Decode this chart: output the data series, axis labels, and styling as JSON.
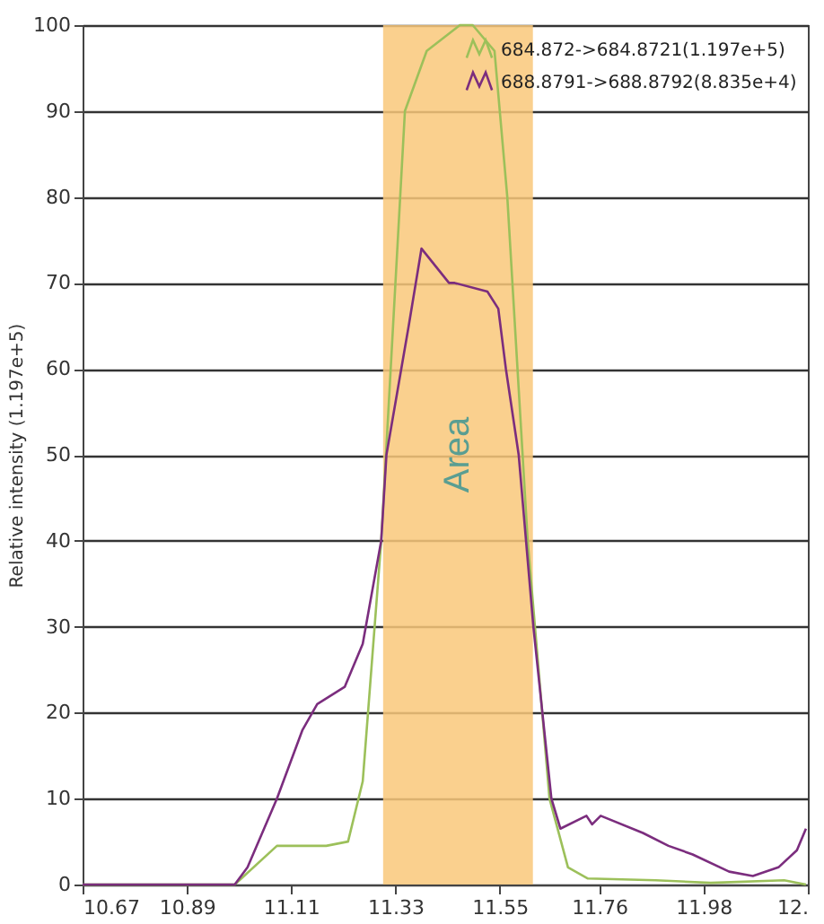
{
  "chart_data": {
    "type": "line",
    "ylabel": "Relative intensity (1.197e+5)",
    "xlim": [
      10.67,
      12.2
    ],
    "xticks": [
      10.67,
      10.89,
      11.11,
      11.33,
      11.55,
      11.76,
      11.98,
      {
        "value": 12.2,
        "label": "12."
      }
    ],
    "ylim": [
      0,
      100
    ],
    "yticks": [
      0,
      10,
      20,
      30,
      40,
      50,
      60,
      70,
      80,
      90,
      100
    ],
    "grid": "y",
    "legend": "top right",
    "line_style": "solid",
    "bands": [
      {
        "axis": "x",
        "from": 11.304,
        "to": 11.62,
        "label": "Area",
        "color": "#f9c87a"
      }
    ],
    "series": [
      {
        "name": "684.872->684.8721(1.197e+5)",
        "color": "#9cc05a",
        "x": [
          10.67,
          10.991,
          11.08,
          11.184,
          11.23,
          11.261,
          11.3,
          11.35,
          11.396,
          11.466,
          11.493,
          11.539,
          11.566,
          11.609,
          11.655,
          11.694,
          11.736,
          11.879,
          11.995,
          12.15,
          12.196
        ],
        "values": [
          0,
          0,
          4.5,
          4.5,
          5,
          12,
          40,
          90,
          97,
          100,
          100,
          97,
          80,
          40,
          10,
          2,
          0.7,
          0.5,
          0.2,
          0.5,
          0
        ]
      },
      {
        "name": "688.8791->688.8792(8.835e+4)",
        "color": "#7b2d7e",
        "x": [
          10.67,
          10.991,
          11.018,
          11.08,
          11.134,
          11.165,
          11.223,
          11.261,
          11.3,
          11.311,
          11.358,
          11.385,
          11.443,
          11.455,
          11.524,
          11.547,
          11.563,
          11.59,
          11.621,
          11.659,
          11.678,
          11.733,
          11.745,
          11.763,
          11.852,
          11.906,
          11.957,
          12.034,
          12.084,
          12.138,
          12.177,
          12.196
        ],
        "values": [
          0,
          0,
          2,
          10,
          18,
          21,
          23,
          28,
          40,
          50,
          65,
          74,
          70,
          70,
          69,
          67,
          60,
          50,
          30,
          10,
          6.5,
          8,
          7,
          8,
          6,
          4.5,
          3.5,
          1.5,
          1,
          2,
          4,
          6.5
        ]
      }
    ]
  }
}
